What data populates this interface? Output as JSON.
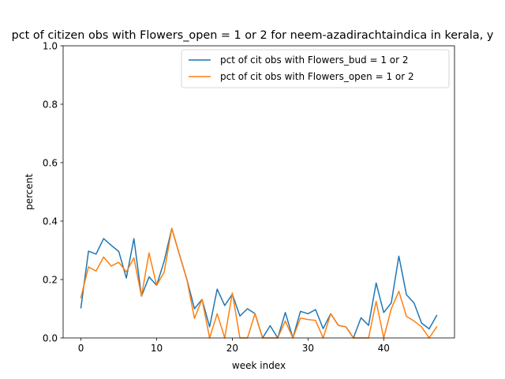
{
  "chart_data": {
    "type": "line",
    "title": "pct of citizen obs with Flowers_open = 1 or 2 for neem-azadirachtaindica in kerala, y",
    "xlabel": "week index",
    "ylabel": "percent",
    "xlim": [
      -2.35,
      49.35
    ],
    "ylim": [
      0,
      1.0
    ],
    "xticks": [
      0,
      10,
      20,
      30,
      40
    ],
    "yticks": [
      0.0,
      0.2,
      0.4,
      0.6,
      0.8,
      1.0
    ],
    "ytick_labels": [
      "0.0",
      "0.2",
      "0.4",
      "0.6",
      "0.8",
      "1.0"
    ],
    "grid": false,
    "legend_position": "top-right",
    "x": [
      0,
      1,
      2,
      3,
      4,
      5,
      6,
      7,
      8,
      9,
      10,
      11,
      12,
      13,
      14,
      15,
      16,
      17,
      18,
      19,
      20,
      21,
      22,
      23,
      24,
      25,
      26,
      27,
      28,
      29,
      30,
      31,
      32,
      33,
      34,
      35,
      36,
      37,
      38,
      39,
      40,
      41,
      42,
      43,
      44,
      45,
      46,
      47
    ],
    "series": [
      {
        "name": "pct of cit obs with Flowers_bud = 1 or 2",
        "color": "#1f77b4",
        "values": [
          0.103,
          0.297,
          0.287,
          0.34,
          0.317,
          0.296,
          0.205,
          0.34,
          0.143,
          0.209,
          0.18,
          0.263,
          0.375,
          0.287,
          0.2,
          0.1,
          0.132,
          0.038,
          0.167,
          0.111,
          0.15,
          0.075,
          0.1,
          0.083,
          0.0,
          0.042,
          0.0,
          0.087,
          0.0,
          0.091,
          0.083,
          0.097,
          0.032,
          0.083,
          0.043,
          0.038,
          0.0,
          0.069,
          0.043,
          0.188,
          0.087,
          0.12,
          0.28,
          0.148,
          0.12,
          0.051,
          0.031,
          0.077
        ]
      },
      {
        "name": "pct of cit obs with Flowers_open = 1 or 2",
        "color": "#ff7f0e",
        "values": [
          0.138,
          0.243,
          0.229,
          0.277,
          0.246,
          0.259,
          0.226,
          0.274,
          0.143,
          0.291,
          0.18,
          0.225,
          0.375,
          0.287,
          0.2,
          0.067,
          0.132,
          0.0,
          0.083,
          0.0,
          0.154,
          0.0,
          0.0,
          0.083,
          0.0,
          0.0,
          0.0,
          0.058,
          0.0,
          0.068,
          0.063,
          0.06,
          0.0,
          0.083,
          0.043,
          0.038,
          0.0,
          0.0,
          0.0,
          0.125,
          0.0,
          0.1,
          0.16,
          0.074,
          0.058,
          0.038,
          0.0,
          0.038
        ]
      }
    ]
  }
}
